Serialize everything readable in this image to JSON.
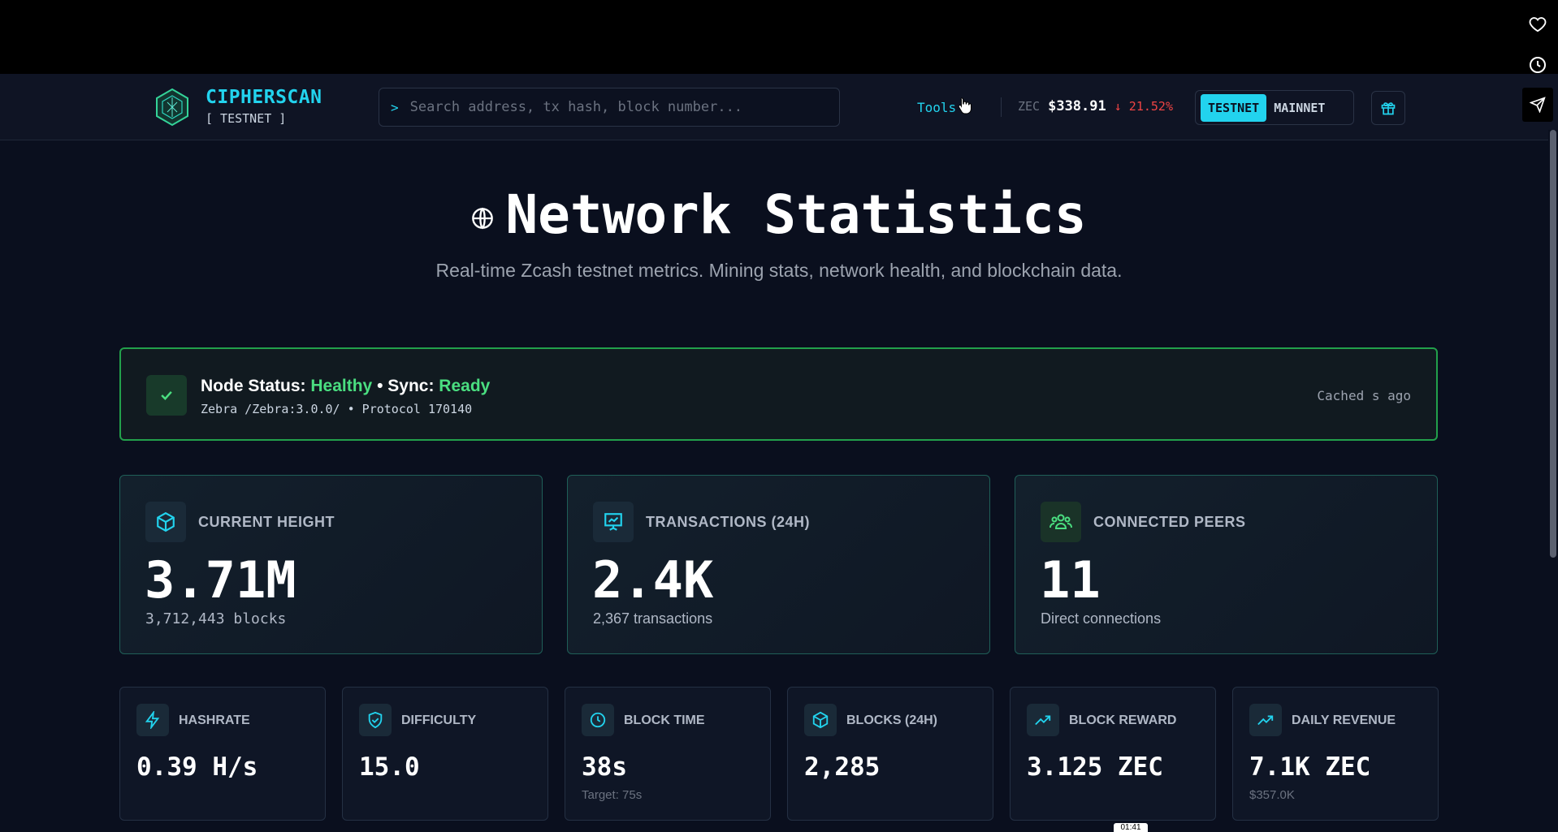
{
  "header": {
    "brand_name": "CIPHERSCAN",
    "brand_network": "[ TESTNET ]",
    "search_prompt": ">",
    "search_placeholder": "Search address, tx hash, block number...",
    "tools_label": "Tools",
    "price_symbol": "ZEC",
    "price_value": "$338.91",
    "price_change": "↓ 21.52%",
    "networks": [
      "TESTNET",
      "MAINNET"
    ],
    "active_network": "TESTNET"
  },
  "hero": {
    "title": "Network Statistics",
    "subtitle": "Real-time Zcash testnet metrics. Mining stats, network health, and blockchain data."
  },
  "node_status": {
    "label": "Node Status:",
    "health": "Healthy",
    "separator": "•",
    "sync_label": "Sync:",
    "sync": "Ready",
    "meta": "Zebra /Zebra:3.0.0/ • Protocol 170140",
    "cache": "Cached s ago"
  },
  "big_cards": [
    {
      "icon": "cube-icon",
      "label": "CURRENT HEIGHT",
      "value": "3.71M",
      "sub": "3,712,443 blocks"
    },
    {
      "icon": "presentation-chart-icon",
      "label": "TRANSACTIONS (24H)",
      "value": "2.4K",
      "sub": "2,367 transactions"
    },
    {
      "icon": "users-icon",
      "label": "CONNECTED PEERS",
      "value": "11",
      "sub": "Direct connections"
    }
  ],
  "small_cards": [
    {
      "icon": "lightning-icon",
      "label": "HASHRATE",
      "value": "0.39 H/s",
      "sub": ""
    },
    {
      "icon": "shield-check-icon",
      "label": "DIFFICULTY",
      "value": "15.0",
      "sub": ""
    },
    {
      "icon": "clock-icon",
      "label": "BLOCK TIME",
      "value": "38s",
      "sub": "Target: 75s"
    },
    {
      "icon": "cube-icon",
      "label": "BLOCKS (24H)",
      "value": "2,285",
      "sub": ""
    },
    {
      "icon": "trending-up-icon",
      "label": "BLOCK REWARD",
      "value": "3.125 ZEC",
      "sub": ""
    },
    {
      "icon": "trending-up-icon",
      "label": "DAILY REVENUE",
      "value": "7.1K ZEC",
      "sub": "$357.0K"
    }
  ],
  "video_timestamp": "01:41",
  "colors": {
    "accent": "#22d3ee",
    "healthy": "#4ade80",
    "negative": "#ef4444",
    "background": "#0a0f1e"
  }
}
